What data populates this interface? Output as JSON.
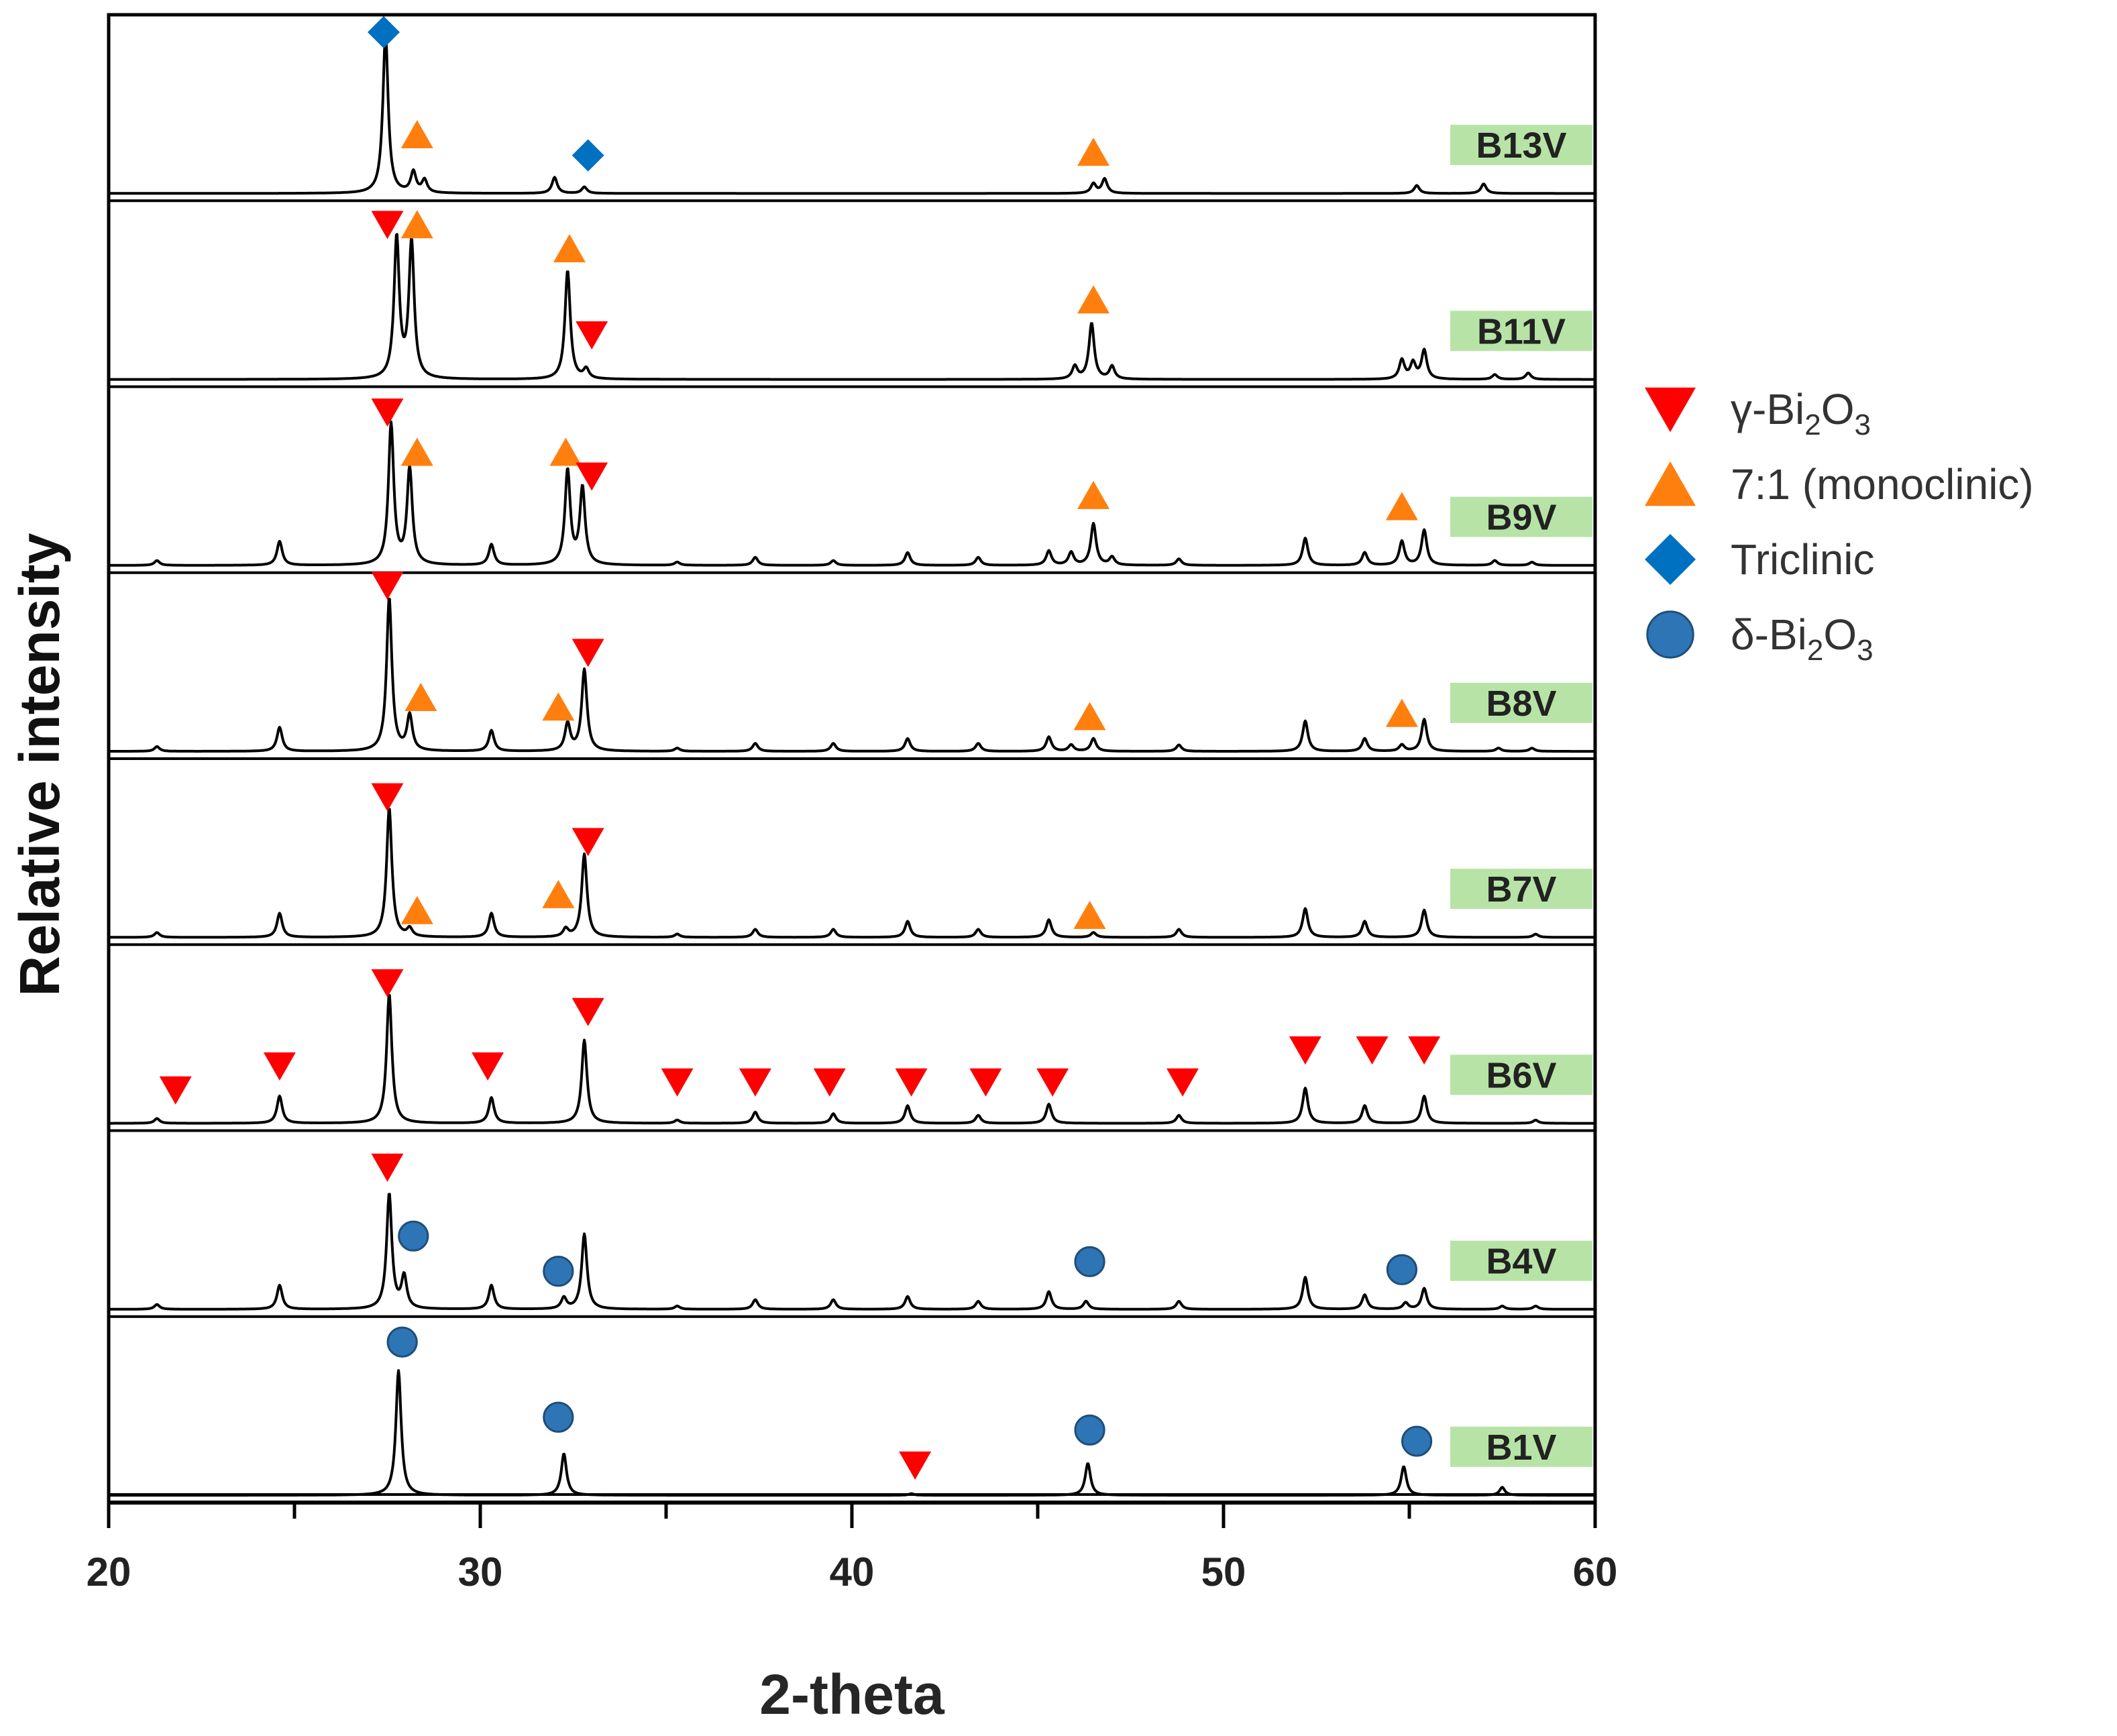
{
  "chart_data": {
    "type": "line",
    "title": "",
    "xlabel": "2-theta",
    "ylabel": "Relative intensity",
    "xlim": [
      20,
      60
    ],
    "xticks": [
      20,
      30,
      40,
      50,
      60
    ],
    "xticklabels": [
      "20",
      "30",
      "40",
      "50",
      "60"
    ],
    "colors": {
      "line": "#000000",
      "gamma": "#ff0000",
      "monoclinic": "#ff7f0e",
      "triclinic": "#0070c0",
      "delta": "#2e75b6",
      "label_bg": "#b7e4a6"
    },
    "legend": [
      {
        "key": "gamma",
        "shape": "triangle-down",
        "prefix": "γ-Bi",
        "sub1": "2",
        "mid": "O",
        "sub2": "3"
      },
      {
        "key": "monoclinic",
        "shape": "triangle-up",
        "prefix": "7:1 (monoclinic)",
        "sub1": "",
        "mid": "",
        "sub2": ""
      },
      {
        "key": "triclinic",
        "shape": "diamond",
        "prefix": "Triclinic",
        "sub1": "",
        "mid": "",
        "sub2": ""
      },
      {
        "key": "delta",
        "shape": "circle",
        "prefix": "δ-Bi",
        "sub1": "2",
        "mid": "O",
        "sub2": "3"
      }
    ],
    "series": [
      {
        "name": "B13V",
        "peaks": [
          [
            27.45,
            1.0
          ],
          [
            28.2,
            0.13
          ],
          [
            28.5,
            0.08
          ],
          [
            32.0,
            0.1
          ],
          [
            32.8,
            0.04
          ],
          [
            46.5,
            0.06
          ],
          [
            46.8,
            0.09
          ],
          [
            55.2,
            0.05
          ],
          [
            57.0,
            0.06
          ]
        ],
        "markers": [
          {
            "type": "triclinic",
            "x": 27.4,
            "y": 1.02
          },
          {
            "type": "monoclinic",
            "x": 28.3,
            "y": 0.38
          },
          {
            "type": "triclinic",
            "x": 32.9,
            "y": 0.25
          },
          {
            "type": "monoclinic",
            "x": 46.5,
            "y": 0.27
          }
        ]
      },
      {
        "name": "B11V",
        "peaks": [
          [
            27.75,
            0.88
          ],
          [
            28.15,
            0.85
          ],
          [
            32.35,
            0.68
          ],
          [
            32.85,
            0.06
          ],
          [
            46.0,
            0.08
          ],
          [
            46.45,
            0.35
          ],
          [
            47.0,
            0.08
          ],
          [
            54.8,
            0.12
          ],
          [
            55.1,
            0.1
          ],
          [
            55.4,
            0.18
          ],
          [
            57.3,
            0.03
          ],
          [
            58.2,
            0.04
          ]
        ],
        "markers": [
          {
            "type": "gamma",
            "x": 27.5,
            "y": 0.98
          },
          {
            "type": "monoclinic",
            "x": 28.3,
            "y": 0.98
          },
          {
            "type": "monoclinic",
            "x": 32.4,
            "y": 0.83
          },
          {
            "type": "gamma",
            "x": 33.0,
            "y": 0.29
          },
          {
            "type": "monoclinic",
            "x": 46.5,
            "y": 0.51
          }
        ]
      },
      {
        "name": "B9V",
        "peaks": [
          [
            21.3,
            0.03
          ],
          [
            24.6,
            0.15
          ],
          [
            27.6,
            0.88
          ],
          [
            28.1,
            0.6
          ],
          [
            30.3,
            0.13
          ],
          [
            32.35,
            0.59
          ],
          [
            32.75,
            0.48
          ],
          [
            35.3,
            0.02
          ],
          [
            37.4,
            0.05
          ],
          [
            39.5,
            0.03
          ],
          [
            41.5,
            0.08
          ],
          [
            43.4,
            0.05
          ],
          [
            45.3,
            0.09
          ],
          [
            45.9,
            0.08
          ],
          [
            46.5,
            0.26
          ],
          [
            47.0,
            0.05
          ],
          [
            48.8,
            0.04
          ],
          [
            52.2,
            0.17
          ],
          [
            53.8,
            0.08
          ],
          [
            54.8,
            0.15
          ],
          [
            55.4,
            0.22
          ],
          [
            57.3,
            0.03
          ],
          [
            58.3,
            0.02
          ]
        ],
        "markers": [
          {
            "type": "gamma",
            "x": 27.5,
            "y": 0.97
          },
          {
            "type": "monoclinic",
            "x": 28.3,
            "y": 0.72
          },
          {
            "type": "monoclinic",
            "x": 32.3,
            "y": 0.72
          },
          {
            "type": "gamma",
            "x": 33.0,
            "y": 0.57
          },
          {
            "type": "monoclinic",
            "x": 46.5,
            "y": 0.45
          },
          {
            "type": "monoclinic",
            "x": 54.8,
            "y": 0.38
          }
        ]
      },
      {
        "name": "B8V",
        "peaks": [
          [
            21.3,
            0.03
          ],
          [
            24.6,
            0.15
          ],
          [
            27.55,
            0.96
          ],
          [
            28.1,
            0.22
          ],
          [
            30.3,
            0.13
          ],
          [
            32.35,
            0.17
          ],
          [
            32.8,
            0.51
          ],
          [
            35.3,
            0.02
          ],
          [
            37.4,
            0.05
          ],
          [
            39.5,
            0.05
          ],
          [
            41.5,
            0.08
          ],
          [
            43.4,
            0.05
          ],
          [
            45.3,
            0.09
          ],
          [
            45.9,
            0.04
          ],
          [
            46.5,
            0.08
          ],
          [
            48.8,
            0.04
          ],
          [
            52.2,
            0.19
          ],
          [
            53.8,
            0.08
          ],
          [
            54.8,
            0.04
          ],
          [
            55.4,
            0.2
          ],
          [
            57.4,
            0.02
          ],
          [
            58.3,
            0.02
          ]
        ],
        "markers": [
          {
            "type": "gamma",
            "x": 27.5,
            "y": 1.05
          },
          {
            "type": "monoclinic",
            "x": 28.4,
            "y": 0.35
          },
          {
            "type": "monoclinic",
            "x": 32.1,
            "y": 0.29
          },
          {
            "type": "gamma",
            "x": 32.9,
            "y": 0.63
          },
          {
            "type": "monoclinic",
            "x": 46.4,
            "y": 0.23
          },
          {
            "type": "monoclinic",
            "x": 54.8,
            "y": 0.25
          }
        ]
      },
      {
        "name": "B7V",
        "peaks": [
          [
            21.3,
            0.03
          ],
          [
            24.6,
            0.15
          ],
          [
            27.55,
            0.81
          ],
          [
            28.1,
            0.05
          ],
          [
            30.3,
            0.15
          ],
          [
            32.3,
            0.05
          ],
          [
            32.8,
            0.52
          ],
          [
            35.3,
            0.02
          ],
          [
            37.4,
            0.05
          ],
          [
            39.5,
            0.05
          ],
          [
            41.5,
            0.1
          ],
          [
            43.4,
            0.05
          ],
          [
            45.3,
            0.11
          ],
          [
            46.5,
            0.03
          ],
          [
            48.8,
            0.05
          ],
          [
            52.2,
            0.18
          ],
          [
            53.8,
            0.1
          ],
          [
            55.4,
            0.17
          ],
          [
            58.4,
            0.02
          ]
        ],
        "markers": [
          {
            "type": "gamma",
            "x": 27.5,
            "y": 0.89
          },
          {
            "type": "monoclinic",
            "x": 28.3,
            "y": 0.18
          },
          {
            "type": "monoclinic",
            "x": 32.1,
            "y": 0.28
          },
          {
            "type": "gamma",
            "x": 32.9,
            "y": 0.61
          },
          {
            "type": "monoclinic",
            "x": 46.4,
            "y": 0.15
          }
        ]
      },
      {
        "name": "B6V",
        "peaks": [
          [
            21.3,
            0.03
          ],
          [
            24.6,
            0.17
          ],
          [
            27.55,
            0.81
          ],
          [
            30.3,
            0.16
          ],
          [
            32.8,
            0.52
          ],
          [
            35.3,
            0.02
          ],
          [
            37.4,
            0.07
          ],
          [
            39.5,
            0.06
          ],
          [
            41.5,
            0.11
          ],
          [
            43.4,
            0.05
          ],
          [
            45.3,
            0.12
          ],
          [
            48.8,
            0.05
          ],
          [
            52.2,
            0.22
          ],
          [
            53.8,
            0.11
          ],
          [
            55.4,
            0.17
          ],
          [
            58.4,
            0.02
          ]
        ],
        "markers": [
          {
            "type": "gamma",
            "x": 21.8,
            "y": 0.22
          },
          {
            "type": "gamma",
            "x": 24.6,
            "y": 0.37
          },
          {
            "type": "gamma",
            "x": 27.5,
            "y": 0.89
          },
          {
            "type": "gamma",
            "x": 30.2,
            "y": 0.37
          },
          {
            "type": "gamma",
            "x": 32.9,
            "y": 0.71
          },
          {
            "type": "gamma",
            "x": 35.3,
            "y": 0.27
          },
          {
            "type": "gamma",
            "x": 37.4,
            "y": 0.27
          },
          {
            "type": "gamma",
            "x": 39.4,
            "y": 0.27
          },
          {
            "type": "gamma",
            "x": 41.6,
            "y": 0.27
          },
          {
            "type": "gamma",
            "x": 43.6,
            "y": 0.27
          },
          {
            "type": "gamma",
            "x": 45.4,
            "y": 0.27
          },
          {
            "type": "gamma",
            "x": 48.9,
            "y": 0.27
          },
          {
            "type": "gamma",
            "x": 52.2,
            "y": 0.47
          },
          {
            "type": "gamma",
            "x": 54.0,
            "y": 0.47
          },
          {
            "type": "gamma",
            "x": 55.4,
            "y": 0.47
          }
        ]
      },
      {
        "name": "B4V",
        "peaks": [
          [
            21.3,
            0.03
          ],
          [
            24.6,
            0.15
          ],
          [
            27.55,
            0.72
          ],
          [
            27.95,
            0.2
          ],
          [
            30.3,
            0.15
          ],
          [
            32.25,
            0.07
          ],
          [
            32.8,
            0.47
          ],
          [
            35.3,
            0.02
          ],
          [
            37.4,
            0.06
          ],
          [
            39.5,
            0.06
          ],
          [
            41.5,
            0.08
          ],
          [
            43.4,
            0.05
          ],
          [
            45.3,
            0.11
          ],
          [
            46.3,
            0.05
          ],
          [
            48.8,
            0.05
          ],
          [
            52.2,
            0.2
          ],
          [
            53.8,
            0.09
          ],
          [
            54.9,
            0.04
          ],
          [
            55.4,
            0.13
          ],
          [
            57.5,
            0.02
          ],
          [
            58.4,
            0.02
          ]
        ],
        "markers": [
          {
            "type": "gamma",
            "x": 27.5,
            "y": 0.9
          },
          {
            "type": "delta",
            "x": 28.2,
            "y": 0.47
          },
          {
            "type": "delta",
            "x": 32.1,
            "y": 0.25
          },
          {
            "type": "delta",
            "x": 46.4,
            "y": 0.31
          },
          {
            "type": "delta",
            "x": 54.8,
            "y": 0.26
          }
        ]
      },
      {
        "name": "B1V",
        "peaks": [
          [
            27.8,
            0.78
          ],
          [
            32.25,
            0.26
          ],
          [
            41.6,
            0.01
          ],
          [
            46.35,
            0.2
          ],
          [
            54.85,
            0.18
          ],
          [
            57.5,
            0.05
          ]
        ],
        "markers": [
          {
            "type": "delta",
            "x": 27.9,
            "y": 0.97
          },
          {
            "type": "delta",
            "x": 32.1,
            "y": 0.5
          },
          {
            "type": "gamma",
            "x": 41.7,
            "y": 0.2
          },
          {
            "type": "delta",
            "x": 46.4,
            "y": 0.42
          },
          {
            "type": "delta",
            "x": 55.2,
            "y": 0.35
          }
        ]
      }
    ]
  }
}
